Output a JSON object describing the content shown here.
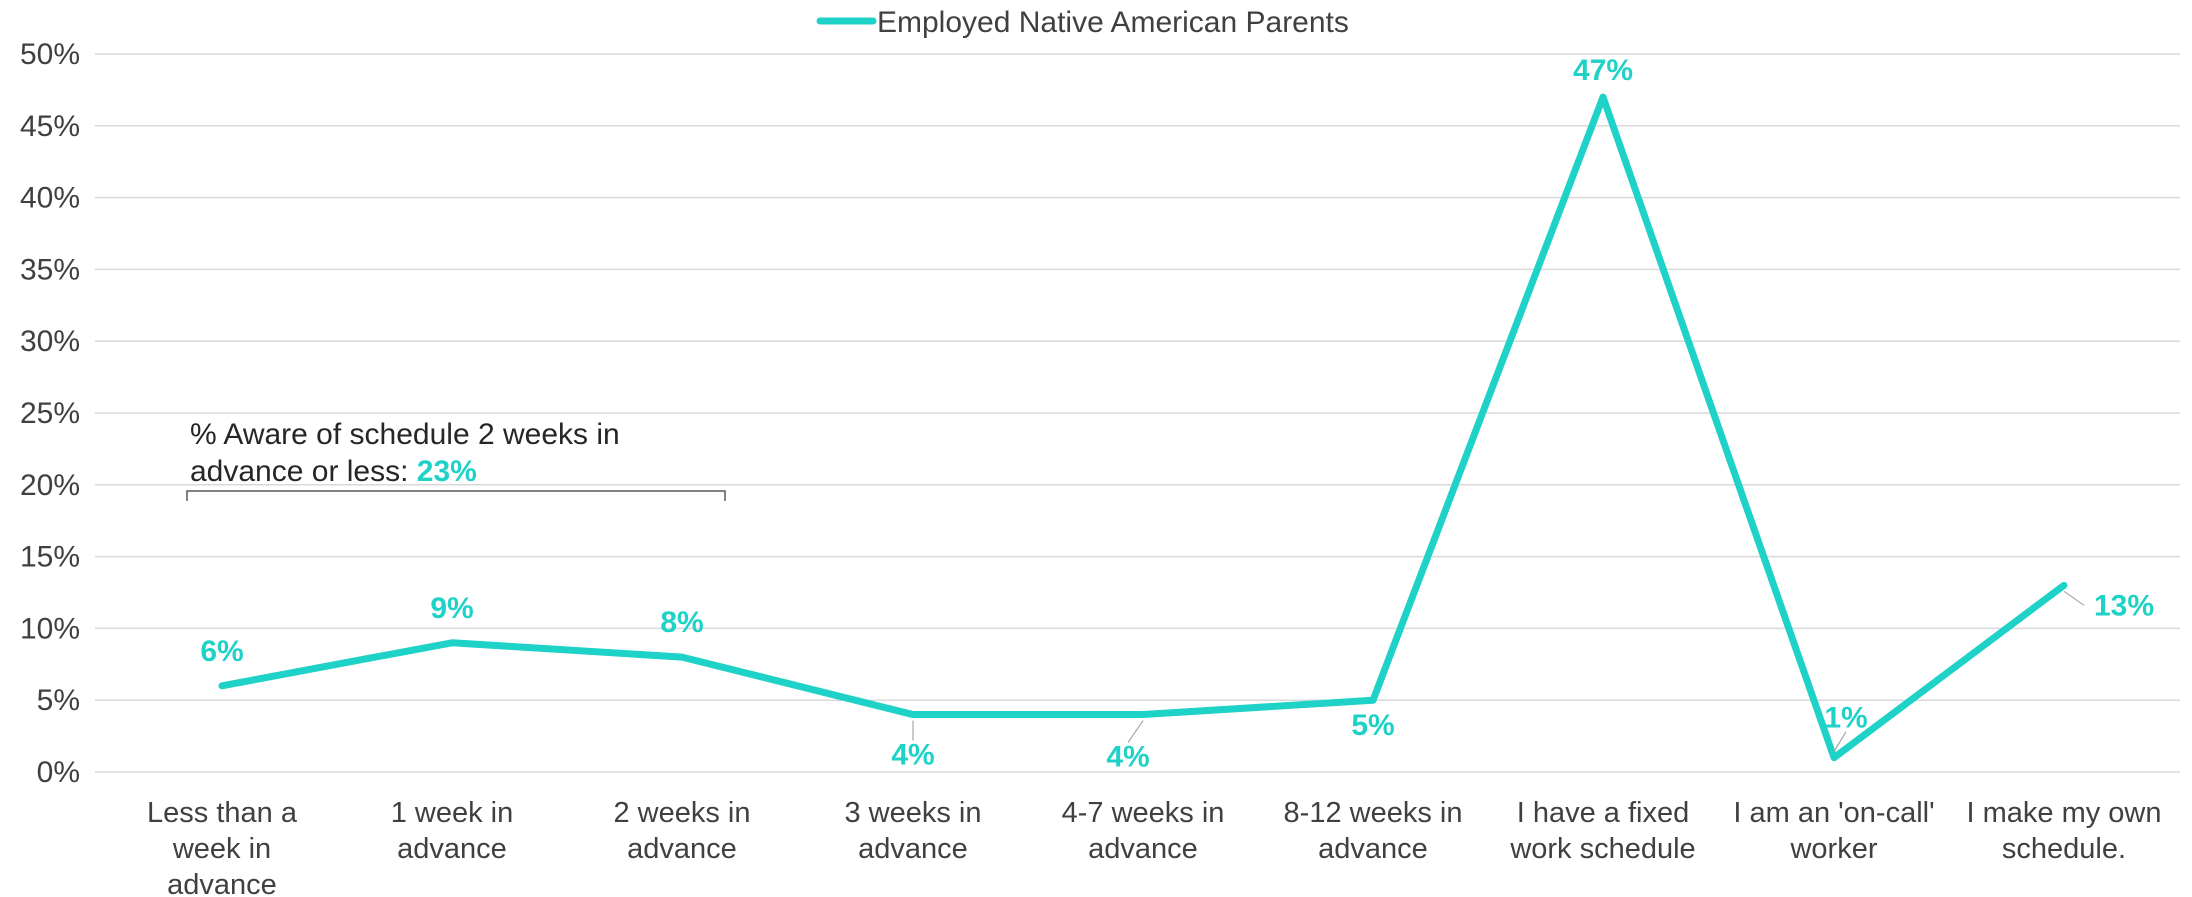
{
  "chart_data": {
    "type": "line",
    "categories": [
      [
        "Less than a",
        "week in",
        "advance"
      ],
      [
        "1 week in",
        "advance"
      ],
      [
        "2 weeks in",
        "advance"
      ],
      [
        "3 weeks in",
        "advance"
      ],
      [
        "4-7 weeks in",
        "advance"
      ],
      [
        "8-12 weeks in",
        "advance"
      ],
      [
        "I have a fixed",
        "work schedule"
      ],
      [
        "I am an 'on-call'",
        "worker"
      ],
      [
        "I make my own",
        "schedule."
      ]
    ],
    "series": [
      {
        "name": "Employed Native American Parents",
        "values": [
          6,
          9,
          8,
          4,
          4,
          5,
          47,
          1,
          13
        ],
        "data_labels": [
          "6%",
          "9%",
          "8%",
          "4%",
          "4%",
          "5%",
          "47%",
          "1%",
          "13%"
        ],
        "color": "#1FD2C7"
      }
    ],
    "ylim": [
      0,
      50
    ],
    "yticks": [
      0,
      5,
      10,
      15,
      20,
      25,
      30,
      35,
      40,
      45,
      50
    ],
    "ytick_labels": [
      "0%",
      "5%",
      "10%",
      "15%",
      "20%",
      "25%",
      "30%",
      "35%",
      "40%",
      "45%",
      "50%"
    ],
    "grid": true,
    "legend_position": "top-center",
    "annotation": {
      "line1": "% Aware of schedule 2 weeks in",
      "line2": "advance or less: ",
      "value": "23%",
      "spans_categories": [
        0,
        2
      ]
    },
    "colors": {
      "series": "#1FD2C7",
      "grid": "#D9D9D9",
      "text": "#404040"
    }
  }
}
